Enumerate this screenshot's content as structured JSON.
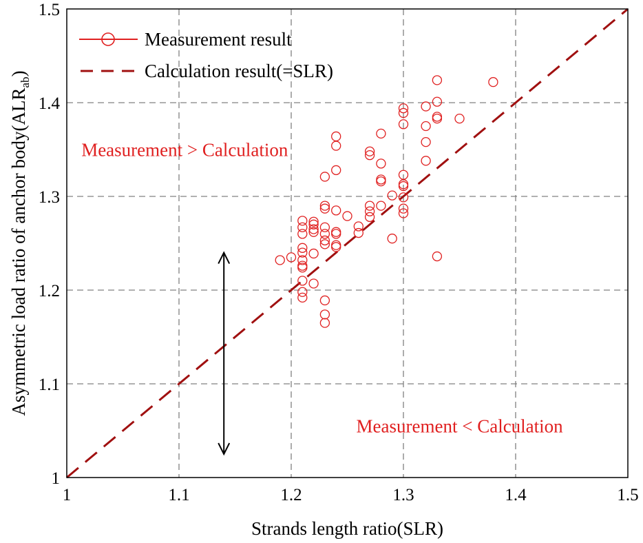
{
  "chart_data": {
    "type": "scatter",
    "title": "",
    "xlabel": "Strands length ratio(SLR)",
    "ylabel_main": "Asymmetric load ratio of anchor body(ALR",
    "ylabel_sub": "ab",
    "ylabel_close": ")",
    "xlim": [
      1.0,
      1.5
    ],
    "ylim": [
      1.0,
      1.5
    ],
    "x_ticks": [
      1,
      1.1,
      1.2,
      1.3,
      1.4,
      1.5
    ],
    "x_tick_labels": [
      "1",
      "1.1",
      "1.2",
      "1.3",
      "1.4",
      "1.5"
    ],
    "y_ticks": [
      1,
      1.1,
      1.2,
      1.3,
      1.4,
      1.5
    ],
    "y_tick_labels": [
      "1",
      "1.1",
      "1.2",
      "1.3",
      "1.4",
      "1.5"
    ],
    "grid": true,
    "legend_position": "top-left",
    "colors": {
      "measurement": "#e02020",
      "calculation": "#a01010",
      "grid": "#808080",
      "arrow": "#000000"
    },
    "series": [
      {
        "name": "Measurement result",
        "kind": "scatter",
        "marker": "open-circle",
        "points": [
          [
            1.19,
            1.232
          ],
          [
            1.2,
            1.235
          ],
          [
            1.21,
            1.274
          ],
          [
            1.21,
            1.267
          ],
          [
            1.21,
            1.26
          ],
          [
            1.21,
            1.245
          ],
          [
            1.21,
            1.24
          ],
          [
            1.21,
            1.232
          ],
          [
            1.21,
            1.226
          ],
          [
            1.21,
            1.224
          ],
          [
            1.21,
            1.21
          ],
          [
            1.21,
            1.198
          ],
          [
            1.21,
            1.192
          ],
          [
            1.22,
            1.273
          ],
          [
            1.22,
            1.27
          ],
          [
            1.22,
            1.265
          ],
          [
            1.22,
            1.262
          ],
          [
            1.22,
            1.239
          ],
          [
            1.22,
            1.207
          ],
          [
            1.23,
            1.321
          ],
          [
            1.23,
            1.29
          ],
          [
            1.23,
            1.287
          ],
          [
            1.23,
            1.267
          ],
          [
            1.23,
            1.26
          ],
          [
            1.23,
            1.253
          ],
          [
            1.23,
            1.249
          ],
          [
            1.23,
            1.189
          ],
          [
            1.23,
            1.174
          ],
          [
            1.23,
            1.165
          ],
          [
            1.24,
            1.364
          ],
          [
            1.24,
            1.354
          ],
          [
            1.24,
            1.328
          ],
          [
            1.24,
            1.285
          ],
          [
            1.24,
            1.262
          ],
          [
            1.24,
            1.26
          ],
          [
            1.24,
            1.248
          ],
          [
            1.24,
            1.246
          ],
          [
            1.25,
            1.279
          ],
          [
            1.26,
            1.268
          ],
          [
            1.26,
            1.261
          ],
          [
            1.27,
            1.348
          ],
          [
            1.27,
            1.344
          ],
          [
            1.27,
            1.29
          ],
          [
            1.27,
            1.284
          ],
          [
            1.27,
            1.278
          ],
          [
            1.28,
            1.367
          ],
          [
            1.28,
            1.335
          ],
          [
            1.28,
            1.318
          ],
          [
            1.28,
            1.316
          ],
          [
            1.28,
            1.29
          ],
          [
            1.29,
            1.301
          ],
          [
            1.29,
            1.255
          ],
          [
            1.3,
            1.394
          ],
          [
            1.3,
            1.389
          ],
          [
            1.3,
            1.377
          ],
          [
            1.3,
            1.323
          ],
          [
            1.3,
            1.313
          ],
          [
            1.3,
            1.311
          ],
          [
            1.3,
            1.299
          ],
          [
            1.3,
            1.287
          ],
          [
            1.3,
            1.282
          ],
          [
            1.32,
            1.396
          ],
          [
            1.32,
            1.375
          ],
          [
            1.32,
            1.358
          ],
          [
            1.32,
            1.338
          ],
          [
            1.33,
            1.424
          ],
          [
            1.33,
            1.401
          ],
          [
            1.33,
            1.385
          ],
          [
            1.33,
            1.383
          ],
          [
            1.33,
            1.236
          ],
          [
            1.35,
            1.383
          ],
          [
            1.38,
            1.422
          ]
        ]
      },
      {
        "name": "Calculation result(=SLR)",
        "kind": "line",
        "style": "dashed",
        "points": [
          [
            1.0,
            1.0
          ],
          [
            1.5,
            1.5
          ]
        ]
      }
    ],
    "annotations": [
      {
        "text": "Measurement > Calculation",
        "x": 1.013,
        "y": 1.343
      },
      {
        "text": "Measurement < Calculation",
        "x": 1.258,
        "y": 1.048
      }
    ],
    "arrow": {
      "x": 1.14,
      "y_top": 1.24,
      "y_bottom": 1.025,
      "double_headed": true
    }
  }
}
